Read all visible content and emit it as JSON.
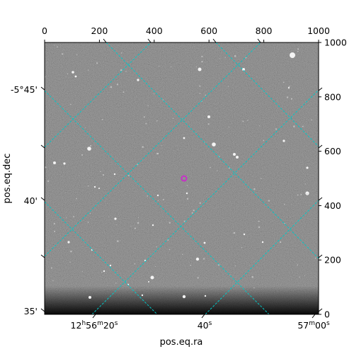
{
  "figure": {
    "xlabel": "pos.eq.ra",
    "ylabel": "pos.eq.dec"
  },
  "pixel_axis_top": {
    "ticks": [
      0,
      200,
      400,
      600,
      800,
      1000
    ],
    "labels": [
      "0",
      "200",
      "400",
      "600",
      "800",
      "1000"
    ]
  },
  "pixel_axis_right": {
    "ticks": [
      0,
      200,
      400,
      600,
      800,
      1000
    ],
    "labels": [
      "0",
      "200",
      "400",
      "600",
      "800",
      "1000"
    ]
  },
  "world_axis_bottom": {
    "labels": [
      "12h56m20s",
      "40s",
      "57m00s"
    ],
    "label_parts": [
      {
        "h": "12",
        "m": "56",
        "s": "20"
      },
      {
        "s": "40"
      },
      {
        "m": "57",
        "s": "00"
      }
    ]
  },
  "world_axis_left": {
    "labels": [
      "-5°45'",
      "40'",
      "35'"
    ]
  },
  "image": {
    "grid_color": "#00c8c8",
    "marker_color": "#d020d0",
    "marker": "circle-icon"
  }
}
